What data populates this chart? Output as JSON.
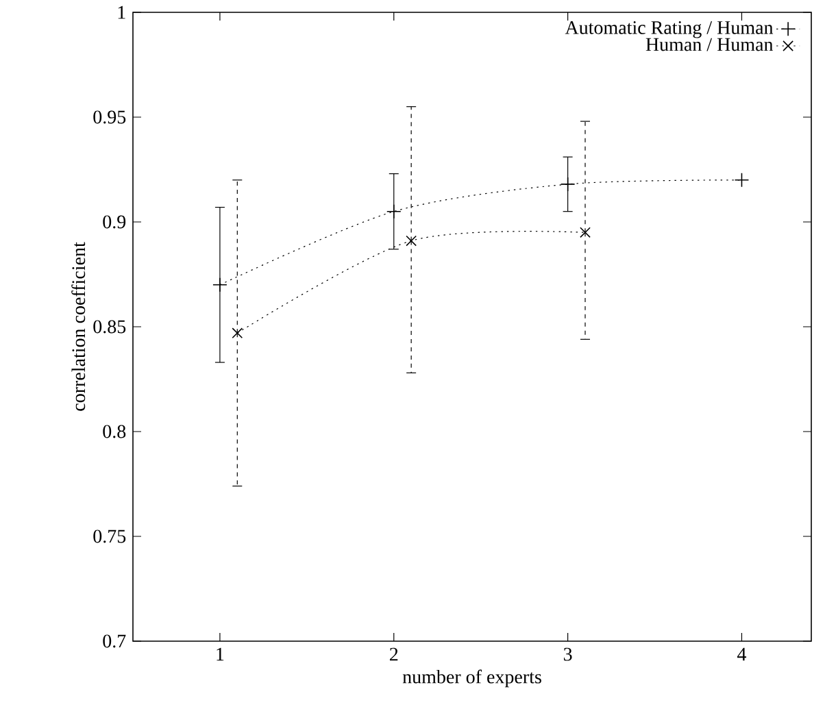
{
  "chart_data": {
    "type": "line",
    "xlabel": "number of experts",
    "ylabel": "correlation coefficient",
    "xlim": [
      0.5,
      4.4
    ],
    "xticks": [
      1,
      2,
      3,
      4
    ],
    "ylim": [
      0.7,
      1
    ],
    "yticks": [
      0.7,
      0.75,
      0.8,
      0.85,
      0.9,
      0.95,
      1
    ],
    "legend": "top right",
    "grid": false,
    "line_style": "dotted",
    "series": [
      {
        "name": "Automatic Rating / Human",
        "color": "#000000",
        "marker": "plus",
        "x": [
          1,
          2,
          3,
          4
        ],
        "values": [
          0.87,
          0.905,
          0.918,
          0.92
        ],
        "errors": [
          [
            0.833,
            0.907
          ],
          [
            0.887,
            0.923
          ],
          [
            0.905,
            0.931
          ],
          null
        ]
      },
      {
        "name": "Human / Human",
        "color": "#000000",
        "marker": "cross",
        "x": [
          1.1,
          2.1,
          3.1
        ],
        "values": [
          0.847,
          0.891,
          0.895
        ],
        "errors": [
          [
            0.774,
            0.92
          ],
          [
            0.828,
            0.955
          ],
          [
            0.844,
            0.948
          ]
        ]
      }
    ]
  }
}
